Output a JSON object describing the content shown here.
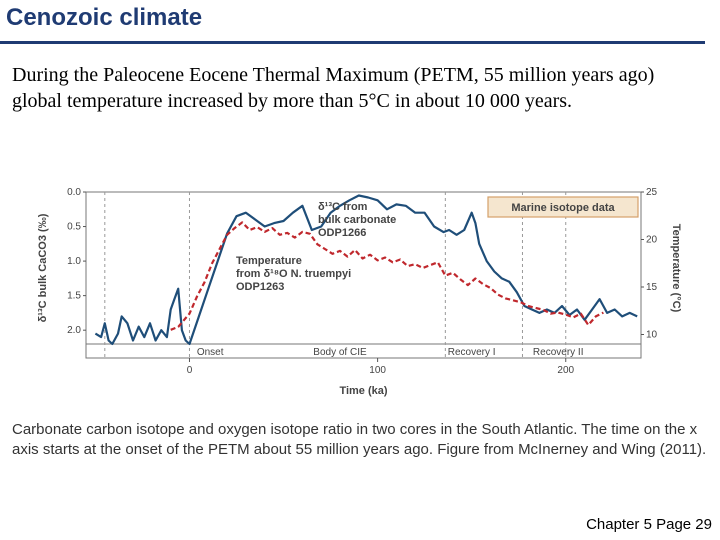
{
  "slide": {
    "title": "Cenozoic climate",
    "intro": "During the Paleocene Eocene Thermal Maximum (PETM, 55 million years ago) global temperature increased by more than 5°C in about 10 000 years.",
    "caption": "Carbonate carbon isotope and oxygen isotope ratio in two cores in the South Atlantic. The time on the x axis starts at the onset of the PETM about 55 million years ago. Figure from McInerney and Wing (2011).",
    "footer": "Chapter 5 Page 29"
  },
  "colors": {
    "title": "#1f3b73",
    "carbon_series": "#1f4e79",
    "temperature_series": "#c0282d",
    "legend_box": "#d4a06a"
  },
  "chart_data": {
    "type": "line",
    "title": "",
    "legend_box": "Marine isotope data",
    "xlabel": "Time (ka)",
    "ylabel_left": "δ¹³C bulk CaCO3 (‰)",
    "ylabel_right": "Temperature (°C)",
    "xlim": [
      -55,
      240
    ],
    "x_ticks": [
      "0",
      "100",
      "200"
    ],
    "x_tick_values": [
      0,
      100,
      200
    ],
    "ylim_left": [
      2.2,
      0.0
    ],
    "y_ticks_left": [
      "0.0",
      "0.5",
      "1.0",
      "1.5",
      "2.0"
    ],
    "y_tick_values_left": [
      0.0,
      0.5,
      1.0,
      1.5,
      2.0
    ],
    "ylim_right": [
      9,
      25
    ],
    "y_ticks_right": [
      "25",
      "20",
      "15",
      "10"
    ],
    "y_tick_values_right": [
      25,
      20,
      15,
      10
    ],
    "phase_boundaries_x": [
      -45,
      0,
      136,
      177,
      200
    ],
    "phases": [
      {
        "label": "Onset",
        "x": 11
      },
      {
        "label": "Body of CIE",
        "x": 80
      },
      {
        "label": "Recovery I",
        "x": 150
      },
      {
        "label": "Recovery II",
        "x": 196
      }
    ],
    "series": [
      {
        "name": "δ¹³C from bulk carbonate ODP1266",
        "axis": "left",
        "x": [
          -50,
          -47,
          -45,
          -43,
          -41,
          -38,
          -36,
          -33,
          -30,
          -27,
          -24,
          -21,
          -18,
          -15,
          -12,
          -10,
          -8,
          -6,
          -4,
          -2,
          0,
          5,
          10,
          15,
          20,
          25,
          30,
          35,
          40,
          45,
          50,
          55,
          60,
          65,
          70,
          75,
          80,
          85,
          90,
          95,
          100,
          105,
          110,
          115,
          120,
          125,
          130,
          135,
          138,
          142,
          146,
          150,
          152,
          154,
          158,
          162,
          166,
          170,
          174,
          178,
          182,
          186,
          190,
          194,
          198,
          202,
          206,
          210,
          214,
          218,
          222,
          226,
          230,
          234,
          238
        ],
        "y": [
          2.05,
          2.1,
          1.9,
          2.15,
          2.2,
          2.05,
          1.8,
          1.9,
          2.15,
          1.95,
          2.1,
          1.9,
          2.15,
          2.0,
          2.1,
          1.7,
          1.55,
          1.4,
          2.0,
          2.15,
          2.2,
          1.8,
          1.4,
          1.0,
          0.6,
          0.35,
          0.3,
          0.4,
          0.5,
          0.45,
          0.42,
          0.3,
          0.2,
          0.55,
          0.5,
          0.3,
          0.2,
          0.12,
          0.05,
          0.08,
          0.12,
          0.25,
          0.18,
          0.2,
          0.3,
          0.3,
          0.5,
          0.58,
          0.55,
          0.62,
          0.55,
          0.3,
          0.45,
          0.75,
          1.0,
          1.15,
          1.25,
          1.3,
          1.45,
          1.65,
          1.7,
          1.75,
          1.7,
          1.75,
          1.65,
          1.78,
          1.7,
          1.85,
          1.7,
          1.55,
          1.75,
          1.7,
          1.8,
          1.75,
          1.8
        ]
      },
      {
        "name": "Temperature from δ¹⁸O N. truempyi ODP1263",
        "axis": "right",
        "x": [
          -10,
          -6,
          -3,
          0,
          4,
          8,
          12,
          16,
          20,
          24,
          28,
          32,
          36,
          40,
          44,
          48,
          52,
          56,
          60,
          64,
          68,
          72,
          76,
          80,
          84,
          88,
          92,
          96,
          100,
          104,
          108,
          112,
          116,
          120,
          124,
          128,
          132,
          136,
          140,
          144,
          148,
          152,
          156,
          160,
          164,
          168,
          172,
          176,
          180,
          184,
          188,
          190,
          192,
          196,
          200,
          204,
          208,
          212,
          216,
          220
        ],
        "y": [
          10.5,
          10.8,
          11.5,
          12.2,
          14.0,
          15.5,
          17.5,
          19.0,
          20.5,
          21.2,
          21.8,
          21.0,
          21.3,
          20.8,
          21.2,
          20.5,
          20.7,
          20.2,
          20.8,
          20.6,
          19.5,
          19.0,
          18.5,
          18.8,
          18.2,
          18.9,
          18.0,
          18.4,
          17.8,
          18.1,
          17.6,
          17.9,
          17.2,
          17.4,
          17.0,
          17.3,
          17.6,
          16.2,
          16.5,
          15.8,
          15.2,
          15.9,
          15.3,
          14.9,
          14.2,
          13.8,
          13.6,
          13.4,
          13.0,
          12.8,
          12.6,
          12.4,
          12.2,
          12.3,
          12.1,
          11.8,
          12.2,
          11.0,
          11.9,
          12.3
        ]
      }
    ]
  }
}
